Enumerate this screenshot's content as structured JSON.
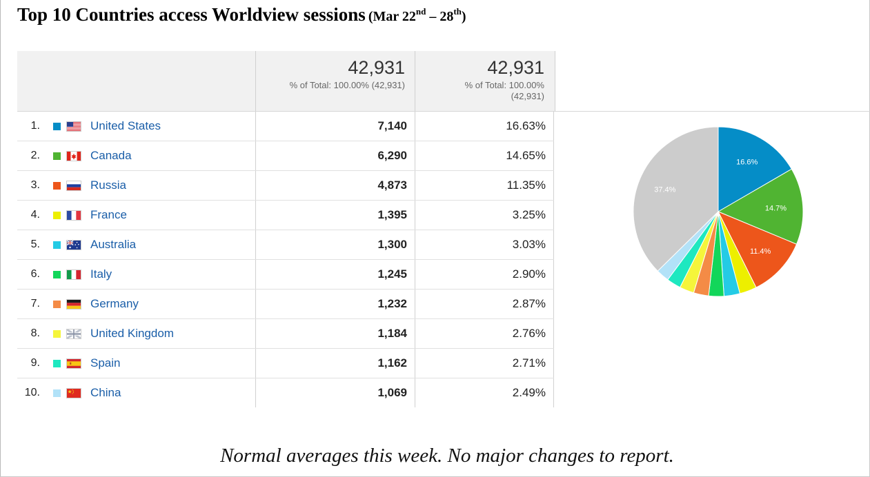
{
  "title": {
    "main": "Top 10 Countries access Worldview sessions",
    "range_open": "(Mar 22",
    "range_sup1": "nd",
    "range_mid": " – 28",
    "range_sup2": "th",
    "range_close": ")"
  },
  "header": {
    "sessions": {
      "total": "42,931",
      "subtitle": "% of Total: 100.00% (42,931)"
    },
    "percent": {
      "total": "42,931",
      "subtitle_line1": "% of Total: 100.00%",
      "subtitle_line2": "(42,931)"
    }
  },
  "rows": [
    {
      "rank": "1.",
      "country": "United States",
      "sessions": "7,140",
      "percent": "16.63%",
      "color": "#058dc7",
      "flag": "us-flag"
    },
    {
      "rank": "2.",
      "country": "Canada",
      "sessions": "6,290",
      "percent": "14.65%",
      "color": "#50b432",
      "flag": "canada-flag"
    },
    {
      "rank": "3.",
      "country": "Russia",
      "sessions": "4,873",
      "percent": "11.35%",
      "color": "#ed561b",
      "flag": "russia-flag"
    },
    {
      "rank": "4.",
      "country": "France",
      "sessions": "1,395",
      "percent": "3.25%",
      "color": "#edef00",
      "flag": "france-flag"
    },
    {
      "rank": "5.",
      "country": "Australia",
      "sessions": "1,300",
      "percent": "3.03%",
      "color": "#24cbe5",
      "flag": "australia-flag"
    },
    {
      "rank": "6.",
      "country": "Italy",
      "sessions": "1,245",
      "percent": "2.90%",
      "color": "#12d65a",
      "flag": "italy-flag"
    },
    {
      "rank": "7.",
      "country": "Germany",
      "sessions": "1,232",
      "percent": "2.87%",
      "color": "#f48b46",
      "flag": "germany-flag"
    },
    {
      "rank": "8.",
      "country": "United Kingdom",
      "sessions": "1,184",
      "percent": "2.76%",
      "color": "#f5f53b",
      "flag": "uk-flag"
    },
    {
      "rank": "9.",
      "country": "Spain",
      "sessions": "1,162",
      "percent": "2.71%",
      "color": "#1ee8c0",
      "flag": "spain-flag"
    },
    {
      "rank": "10.",
      "country": "China",
      "sessions": "1,069",
      "percent": "2.49%",
      "color": "#b2e2f8",
      "flag": "china-flag"
    }
  ],
  "chart_data": {
    "type": "pie",
    "slices": [
      {
        "label": "United States",
        "value": 16.63,
        "color": "#058dc7",
        "display": "16.6%"
      },
      {
        "label": "Canada",
        "value": 14.65,
        "color": "#50b432",
        "display": "14.7%"
      },
      {
        "label": "Russia",
        "value": 11.35,
        "color": "#ed561b",
        "display": "11.4%"
      },
      {
        "label": "France",
        "value": 3.25,
        "color": "#edef00",
        "display": ""
      },
      {
        "label": "Australia",
        "value": 3.03,
        "color": "#24cbe5",
        "display": ""
      },
      {
        "label": "Italy",
        "value": 2.9,
        "color": "#12d65a",
        "display": ""
      },
      {
        "label": "Germany",
        "value": 2.87,
        "color": "#f48b46",
        "display": ""
      },
      {
        "label": "United Kingdom",
        "value": 2.76,
        "color": "#f5f53b",
        "display": ""
      },
      {
        "label": "Spain",
        "value": 2.71,
        "color": "#1ee8c0",
        "display": ""
      },
      {
        "label": "China",
        "value": 2.49,
        "color": "#b2e2f8",
        "display": ""
      },
      {
        "label": "Other",
        "value": 37.36,
        "color": "#cccccc",
        "display": "37.4%"
      }
    ]
  },
  "note": "Normal averages this week. No major changes to report."
}
